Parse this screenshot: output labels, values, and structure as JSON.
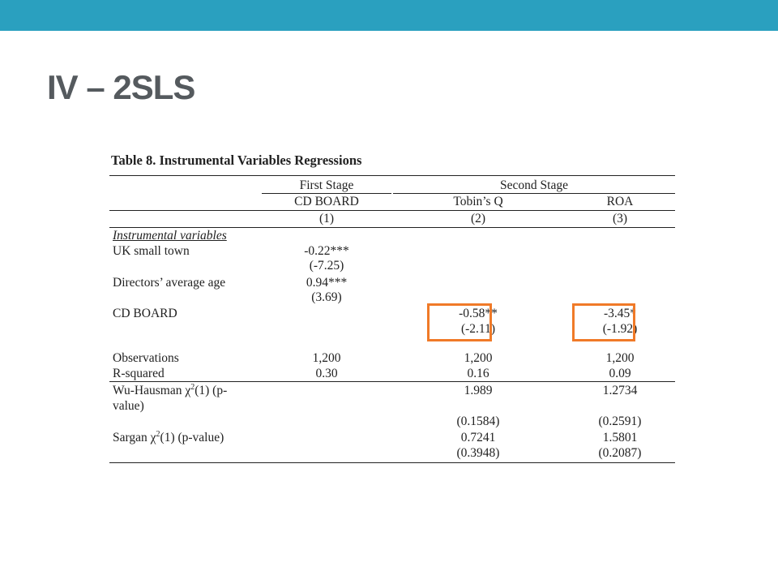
{
  "slide": {
    "title": "IV – 2SLS"
  },
  "table": {
    "caption": "Table 8. Instrumental Variables Regressions",
    "header": {
      "first_stage": "First Stage",
      "second_stage": "Second Stage",
      "dep1": "CD BOARD",
      "dep2": "Tobin’s Q",
      "dep3": "ROA",
      "num1": "(1)",
      "num2": "(2)",
      "num3": "(3)"
    },
    "section_label": "Instrumental variables",
    "rows": {
      "uk_small_town": {
        "label": "UK small town",
        "c1": "-0.22***",
        "c1_t": "(-7.25)"
      },
      "directors_age": {
        "label": "Directors’ average age",
        "c1": "0.94***",
        "c1_t": "(3.69)"
      },
      "cd_board": {
        "label": "CD BOARD",
        "c2": "-0.58**",
        "c2_t": "(-2.11)",
        "c3": "-3.45*",
        "c3_t": "(-1.92)"
      },
      "observations": {
        "label": "Observations",
        "c1": "1,200",
        "c2": "1,200",
        "c3": "1,200"
      },
      "r_squared": {
        "label": "R-squared",
        "c1": "0.30",
        "c2": "0.16",
        "c3": "0.09"
      },
      "wu_hausman": {
        "label_a": "Wu-Hausman χ",
        "label_sup": "2",
        "label_b": "(1) (p-",
        "label_c": "value)",
        "c2": "1.989",
        "c3": "1.2734",
        "c2_p": "(0.1584)",
        "c3_p": "(0.2591)"
      },
      "sargan": {
        "label_a": "Sargan χ",
        "label_sup": "2",
        "label_b": "(1) (p-value)",
        "c2": "0.7241",
        "c3": "1.5801",
        "c2_p": "(0.3948)",
        "c3_p": "(0.2087)"
      }
    },
    "highlight_color": "#f07a28"
  }
}
